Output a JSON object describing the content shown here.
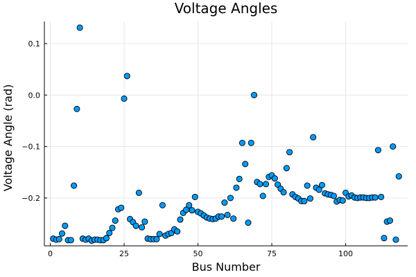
{
  "chart_data": {
    "type": "scatter",
    "title": "Voltage Angles",
    "xlabel": "Bus Number",
    "ylabel": "Voltage Angle (rad)",
    "xlim": [
      -2,
      121
    ],
    "ylim": [
      -0.293,
      0.143
    ],
    "xticks": [
      0,
      25,
      50,
      75,
      100
    ],
    "yticks": [
      -0.2,
      -0.1,
      0.0,
      0.1
    ],
    "ytick_labels": [
      "−0.2",
      "−0.1",
      "0.0",
      "0.1"
    ],
    "grid": true,
    "legend": "none",
    "marker_color": "#009AFA",
    "marker_edge_color": "#000000",
    "x": [
      1,
      2,
      3,
      4,
      5,
      6,
      7,
      8,
      9,
      10,
      11,
      12,
      13,
      14,
      15,
      16,
      17,
      18,
      19,
      20,
      21,
      22,
      23,
      24,
      25,
      26,
      27,
      28,
      29,
      30,
      31,
      32,
      33,
      34,
      35,
      36,
      37,
      38,
      39,
      40,
      41,
      42,
      43,
      44,
      45,
      46,
      47,
      48,
      49,
      50,
      51,
      52,
      53,
      54,
      55,
      56,
      57,
      58,
      59,
      60,
      61,
      62,
      63,
      64,
      65,
      66,
      67,
      68,
      69,
      70,
      71,
      72,
      73,
      74,
      75,
      76,
      77,
      78,
      79,
      80,
      81,
      82,
      83,
      84,
      85,
      86,
      87,
      88,
      89,
      90,
      91,
      92,
      93,
      94,
      95,
      96,
      97,
      98,
      99,
      100,
      101,
      102,
      103,
      104,
      105,
      106,
      107,
      108,
      109,
      110,
      111,
      112,
      113,
      114,
      115,
      116,
      117,
      118
    ],
    "y": [
      -0.279,
      -0.281,
      -0.28,
      -0.269,
      -0.254,
      -0.282,
      -0.282,
      -0.176,
      -0.027,
      0.131,
      -0.279,
      -0.281,
      -0.279,
      -0.283,
      -0.281,
      -0.281,
      -0.282,
      -0.282,
      -0.278,
      -0.268,
      -0.258,
      -0.244,
      -0.222,
      -0.219,
      -0.007,
      0.037,
      -0.241,
      -0.247,
      -0.254,
      -0.19,
      -0.257,
      -0.246,
      -0.279,
      -0.28,
      -0.28,
      -0.28,
      -0.27,
      -0.214,
      -0.273,
      -0.27,
      -0.268,
      -0.261,
      -0.265,
      -0.242,
      -0.229,
      -0.223,
      -0.214,
      -0.224,
      -0.198,
      -0.227,
      -0.23,
      -0.234,
      -0.238,
      -0.24,
      -0.241,
      -0.24,
      -0.236,
      -0.236,
      -0.209,
      -0.233,
      -0.2,
      -0.24,
      -0.18,
      -0.163,
      -0.093,
      -0.134,
      -0.248,
      -0.093,
      0.0,
      -0.169,
      -0.173,
      -0.196,
      -0.173,
      -0.159,
      -0.156,
      -0.162,
      -0.174,
      -0.182,
      -0.189,
      -0.142,
      -0.111,
      -0.193,
      -0.198,
      -0.201,
      -0.206,
      -0.206,
      -0.176,
      -0.201,
      -0.082,
      -0.18,
      -0.184,
      -0.175,
      -0.191,
      -0.193,
      -0.194,
      -0.196,
      -0.207,
      -0.204,
      -0.205,
      -0.19,
      -0.197,
      -0.195,
      -0.199,
      -0.2,
      -0.199,
      -0.199,
      -0.2,
      -0.2,
      -0.199,
      -0.199,
      -0.107,
      -0.198,
      -0.278,
      -0.246,
      -0.244,
      -0.1,
      -0.281,
      -0.158
    ]
  }
}
